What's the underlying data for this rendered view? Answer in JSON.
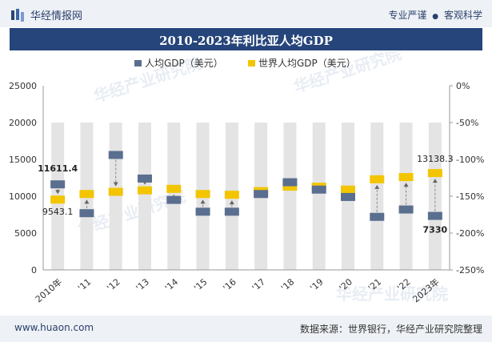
{
  "header": {
    "brand": "华经情报网",
    "slogan_a": "专业严谨",
    "slogan_dot": "●",
    "slogan_b": "客观科学"
  },
  "footer": {
    "site": "www.huaon.com",
    "source": "数据来源：世界银行，华经产业研究院整理"
  },
  "watermark": "华经产业研究院",
  "colors": {
    "libya": "#5a6f8f",
    "world": "#f2c500",
    "band": "#e4e4e4",
    "title_bg": "#26457a"
  },
  "chart_data": {
    "type": "line",
    "title": "2010-2023年利比亚人均GDP",
    "categories": [
      "2010年",
      "'11",
      "'12",
      "'13",
      "'14",
      "'15",
      "'16",
      "'17",
      "'18",
      "'19",
      "'20",
      "'21",
      "'22",
      "2023年"
    ],
    "series": [
      {
        "name": "人均GDP（美元）",
        "values": [
          11611.4,
          7700,
          15600,
          12400,
          9500,
          7900,
          7900,
          10300,
          11900,
          10900,
          9900,
          7200,
          8200,
          7330
        ]
      },
      {
        "name": "世界人均GDP（美元）",
        "values": [
          9543.1,
          10300,
          10600,
          10800,
          11000,
          10300,
          10200,
          10700,
          11300,
          11300,
          10900,
          12300,
          12600,
          13138.3
        ]
      }
    ],
    "data_labels": [
      {
        "series": 0,
        "index": 0,
        "text": "11611.4"
      },
      {
        "series": 1,
        "index": 0,
        "text": "9543.1"
      },
      {
        "series": 1,
        "index": 13,
        "text": "13138.3"
      },
      {
        "series": 0,
        "index": 13,
        "text": "7330"
      }
    ],
    "left_axis": {
      "min": 0,
      "max": 25000,
      "ticks": [
        "0",
        "5000",
        "10000",
        "15000",
        "20000",
        "25000"
      ]
    },
    "right_axis": {
      "min": -250,
      "max": 0,
      "ticks": [
        "0%",
        "-50%",
        "-100%",
        "-150%",
        "-200%",
        "-250%"
      ]
    },
    "legend_position": "top-center"
  }
}
